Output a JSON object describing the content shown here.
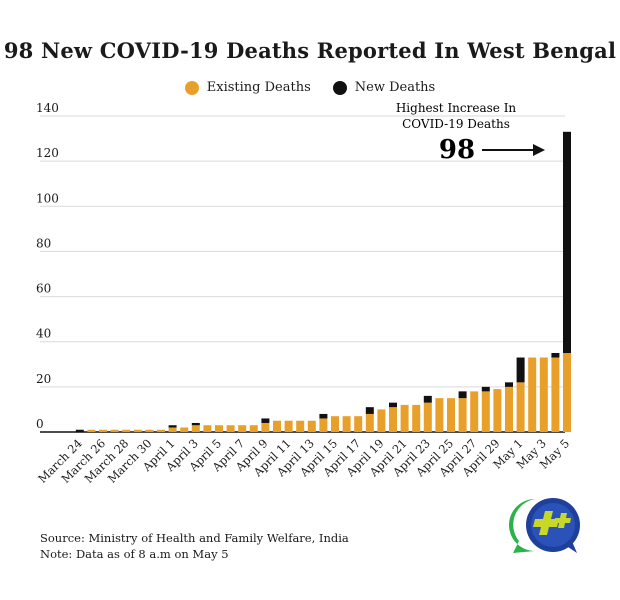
{
  "title": "98 New COVID-19 Deaths Reported In West Bengal",
  "legend": [
    {
      "label": "Existing Deaths",
      "color": "#e8a02a"
    },
    {
      "label": "New Deaths",
      "color": "#111111"
    }
  ],
  "annotation": {
    "line1": "Highest Increase In",
    "line2": "COVID-19 Deaths",
    "value": "98"
  },
  "footer": {
    "source": "Source: Ministry of Health and Family Welfare, India",
    "note": "Note: Data as of 8 a.m on May 5"
  },
  "logo": {
    "icon": "plus-chat-bubble-logo",
    "colors": [
      "#2bb34a",
      "#1f3f9c",
      "#c8d829"
    ]
  },
  "chart_data": {
    "type": "bar",
    "stacked": true,
    "title": "98 New COVID-19 Deaths Reported In West Bengal",
    "xlabel": "",
    "ylabel": "",
    "ylim": [
      0,
      140
    ],
    "yticks": [
      0,
      20,
      40,
      60,
      80,
      100,
      120,
      140
    ],
    "grid": true,
    "legend_position": "top",
    "categories": [
      "March 24",
      "March 25",
      "March 26",
      "March 27",
      "March 28",
      "March 29",
      "March 30",
      "March 31",
      "April 1",
      "April 2",
      "April 3",
      "April 4",
      "April 5",
      "April 6",
      "April 7",
      "April 8",
      "April 9",
      "April 10",
      "April 11",
      "April 12",
      "April 13",
      "April 14",
      "April 15",
      "April 16",
      "April 17",
      "April 18",
      "April 19",
      "April 20",
      "April 21",
      "April 22",
      "April 23",
      "April 24",
      "April 25",
      "April 26",
      "April 27",
      "April 28",
      "April 29",
      "April 30",
      "May 1",
      "May 2",
      "May 3",
      "May 4",
      "May 5"
    ],
    "xtick_labels": [
      "March 24",
      "March 26",
      "March 28",
      "March 30",
      "April 1",
      "April 3",
      "April 5",
      "April 7",
      "April 9",
      "April 11",
      "April 13",
      "April 15",
      "April 17",
      "April 19",
      "April 21",
      "April 23",
      "April 25",
      "April 27",
      "April 29",
      "May 1",
      "May 3",
      "May 5"
    ],
    "series": [
      {
        "name": "Existing Deaths",
        "color": "#e8a02a",
        "values": [
          0,
          1,
          1,
          1,
          1,
          1,
          1,
          1,
          2,
          2,
          3,
          3,
          3,
          3,
          3,
          3,
          4,
          5,
          5,
          5,
          5,
          6,
          7,
          7,
          7,
          8,
          10,
          11,
          12,
          12,
          13,
          15,
          15,
          15,
          18,
          18,
          19,
          20,
          22,
          33,
          33,
          33,
          35
        ]
      },
      {
        "name": "New Deaths",
        "color": "#111111",
        "values": [
          1,
          0,
          0,
          0,
          0,
          0,
          0,
          0,
          1,
          0,
          1,
          0,
          0,
          0,
          0,
          0,
          2,
          0,
          0,
          0,
          0,
          2,
          0,
          0,
          0,
          3,
          0,
          2,
          0,
          0,
          3,
          0,
          0,
          3,
          0,
          2,
          0,
          2,
          11,
          0,
          0,
          2,
          98
        ]
      }
    ]
  }
}
